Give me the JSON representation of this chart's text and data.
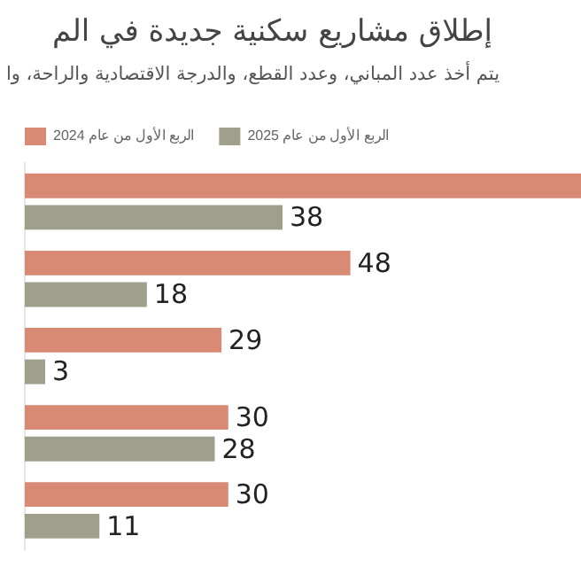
{
  "chart_data": {
    "type": "bar",
    "orientation": "horizontal",
    "title": "إطلاق مشاريع سكنية جديدة في الم",
    "subtitle": "يتم أخذ عدد المباني، وعدد القطع، والدرجة الاقتصادية والراحة، وا",
    "categories": [
      null,
      null,
      null,
      null,
      null
    ],
    "series": [
      {
        "name": "الربع الأول من عام 2024",
        "color": "#d98a74",
        "values": [
          82,
          48,
          29,
          30,
          30
        ],
        "value_labels": [
          null,
          "48",
          "29",
          "30",
          "30"
        ]
      },
      {
        "name": "الربع الأول من عام 2025",
        "color": "#a09f8c",
        "values": [
          38,
          18,
          3,
          28,
          11
        ],
        "value_labels": [
          "38",
          "18",
          "3",
          "28",
          "11"
        ]
      }
    ],
    "legend": "top"
  }
}
